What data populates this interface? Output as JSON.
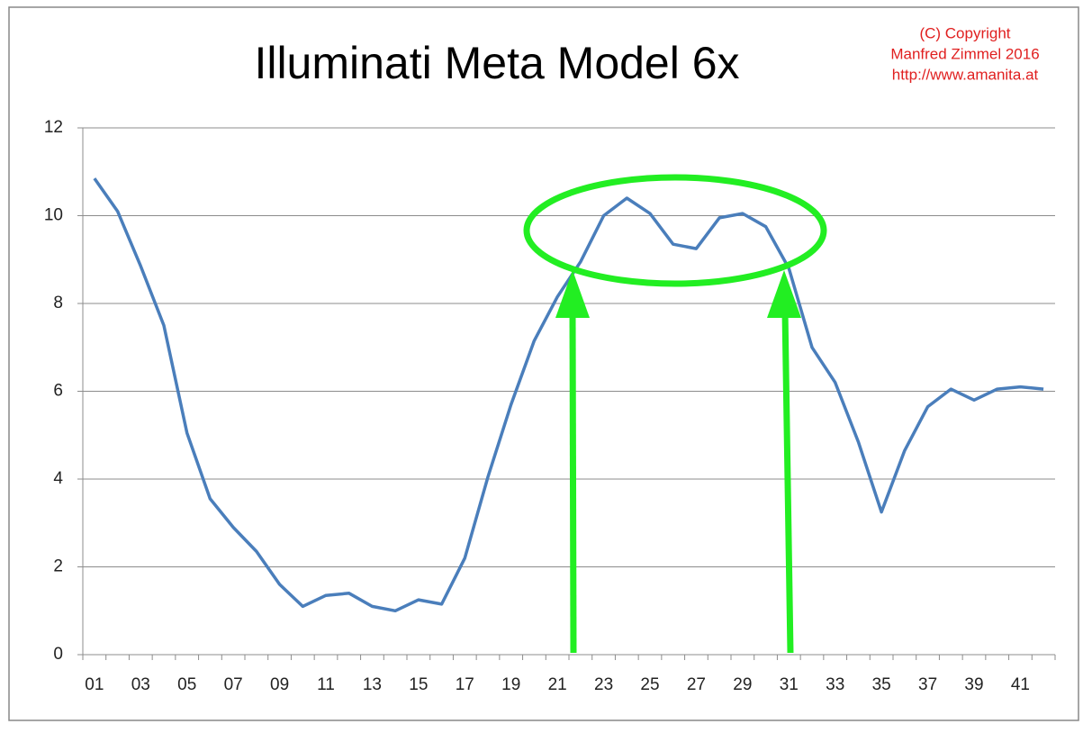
{
  "chart_data": {
    "type": "line",
    "title": "Illuminati Meta Model 6x",
    "annotations": [
      "(C) Copyright",
      "Manfred Zimmel 2016",
      "http://www.amanita.at"
    ],
    "categories": [
      "01",
      null,
      "03",
      null,
      "05",
      null,
      "07",
      null,
      "09",
      null,
      "11",
      null,
      "13",
      null,
      "15",
      null,
      "17",
      null,
      "19",
      null,
      "21",
      null,
      "23",
      null,
      "25",
      null,
      "27",
      null,
      "29",
      null,
      "31",
      null,
      "33",
      null,
      "35",
      null,
      "37",
      null,
      "39",
      null,
      "41",
      null
    ],
    "series": [
      {
        "color": "#4a7ebb",
        "values": [
          10.85,
          10.1,
          8.85,
          7.5,
          5.05,
          3.55,
          2.9,
          2.35,
          1.6,
          1.1,
          1.35,
          1.4,
          1.1,
          1.0,
          1.25,
          1.15,
          2.2,
          4.05,
          5.7,
          7.15,
          8.15,
          8.95,
          10.0,
          10.4,
          10.05,
          9.35,
          9.25,
          9.95,
          10.05,
          9.75,
          8.8,
          7.0,
          6.2,
          4.85,
          3.25,
          4.65,
          5.65,
          6.05,
          5.8,
          6.05,
          6.1,
          6.05
        ]
      }
    ],
    "ylim": [
      0,
      12
    ],
    "yticks": [
      0,
      2,
      4,
      6,
      8,
      10,
      12
    ],
    "grid": true
  }
}
